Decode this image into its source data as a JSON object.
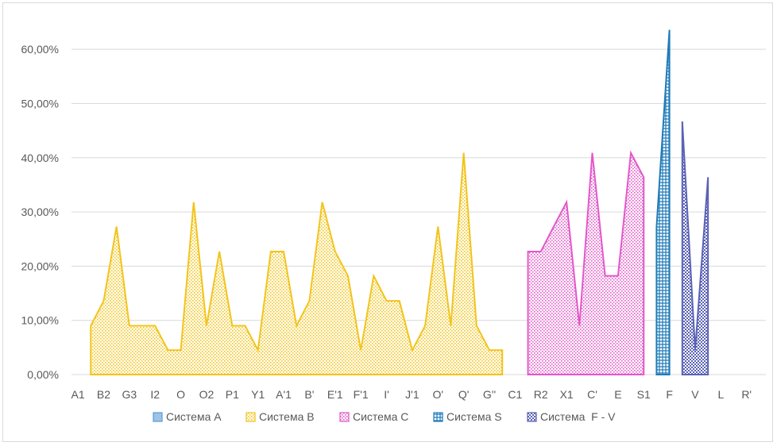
{
  "chart_data": {
    "type": "area",
    "title": "",
    "xlabel": "",
    "ylabel": "",
    "ylim": [
      0,
      0.65
    ],
    "yticks": [
      0,
      0.1,
      0.2,
      0.3,
      0.4,
      0.5,
      0.6
    ],
    "ytick_labels": [
      "0,00%",
      "10,00%",
      "20,00%",
      "30,00%",
      "40,00%",
      "50,00%",
      "60,00%"
    ],
    "grid": "horizontal",
    "legend_position": "bottom",
    "categories_shown": [
      "A1",
      "B2",
      "G3",
      "I2",
      "O",
      "O2",
      "P1",
      "Y1",
      "A'1",
      "B'",
      "E'1",
      "F'1",
      "I'",
      "J'1",
      "O'",
      "Q'",
      "G''",
      "C1",
      "R2",
      "X1",
      "C'",
      "E",
      "S1",
      "F",
      "V",
      "L",
      "R'"
    ],
    "n_positions": 54,
    "series": [
      {
        "name": "Система A",
        "color": "#5B9BD5",
        "x": [],
        "values": []
      },
      {
        "name": "Система B",
        "color": "#F2C41C",
        "x": [
          1,
          2,
          3,
          4,
          5,
          6,
          7,
          8,
          9,
          10,
          11,
          12,
          13,
          14,
          15,
          16,
          17,
          18,
          19,
          20,
          21,
          22,
          23,
          24,
          25,
          26,
          27,
          28,
          29,
          30,
          31,
          32,
          33
        ],
        "values": [
          0.09,
          0.136,
          0.273,
          0.09,
          0.09,
          0.09,
          0.045,
          0.045,
          0.318,
          0.09,
          0.227,
          0.09,
          0.09,
          0.045,
          0.227,
          0.227,
          0.09,
          0.136,
          0.318,
          0.227,
          0.182,
          0.045,
          0.182,
          0.136,
          0.136,
          0.045,
          0.09,
          0.273,
          0.09,
          0.409,
          0.09,
          0.045,
          0.045
        ]
      },
      {
        "name": "Система C",
        "color": "#E358C9",
        "x": [
          35,
          36,
          37,
          38,
          39,
          40,
          41,
          42,
          43
        ],
        "values": [
          0.227,
          0.227,
          0.273,
          0.318,
          0.09,
          0.409,
          0.182,
          0.182,
          0.409
        ]
      },
      {
        "name": "Система S",
        "color": "#1F7BB8",
        "x": [
          45,
          46
        ],
        "values": [
          0.273,
          0.636
        ]
      },
      {
        "name": "Система  F - V",
        "color": "#5A62B5",
        "x": [
          47,
          48,
          49
        ],
        "values": [
          0.467,
          0.045,
          0.364
        ]
      }
    ],
    "extra_points": {
      "series": "Система C",
      "x": [
        44
      ],
      "values": [
        0.364
      ]
    }
  }
}
